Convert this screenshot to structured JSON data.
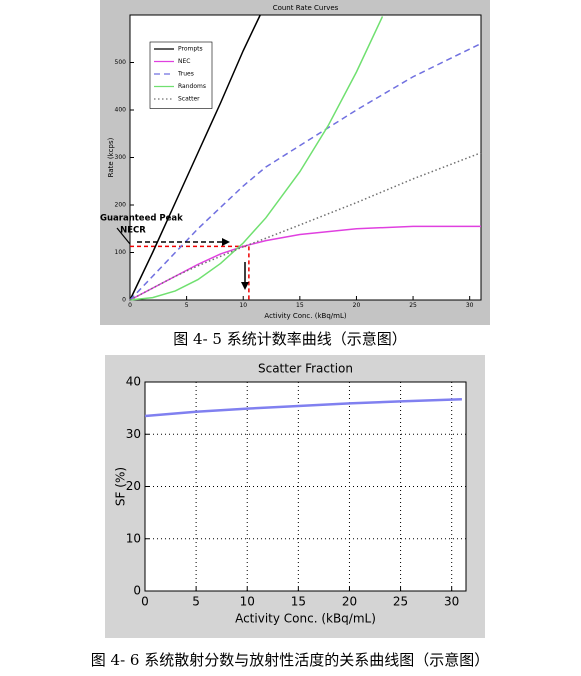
{
  "chart_data": [
    {
      "type": "line",
      "title": "Count Rate Curves",
      "xlabel": "Activity Conc. (kBq/mL)",
      "ylabel": "Rate (kcps)",
      "xlim": [
        0,
        31
      ],
      "ylim": [
        0,
        600
      ],
      "xticks": [
        0,
        5,
        10,
        15,
        20,
        25,
        30
      ],
      "yticks": [
        0,
        100,
        200,
        300,
        400,
        500
      ],
      "grid": false,
      "legend": "upper left",
      "background": "#c4c4c4",
      "series": [
        {
          "name": "Prompts",
          "color": "#000000",
          "style": "solid",
          "x": [
            0,
            2,
            4,
            6,
            8,
            10,
            11.5
          ],
          "values": [
            0,
            100,
            205,
            310,
            415,
            525,
            600
          ]
        },
        {
          "name": "NEC",
          "color": "#e040e0",
          "style": "solid",
          "x": [
            0,
            2,
            4,
            6,
            8,
            10,
            12,
            15,
            20,
            25,
            31
          ],
          "values": [
            0,
            25,
            50,
            75,
            97,
            113,
            125,
            138,
            150,
            155,
            155
          ]
        },
        {
          "name": "Trues",
          "color": "#7070e0",
          "style": "dashed",
          "x": [
            0,
            2,
            4,
            6,
            8,
            10,
            12,
            15,
            20,
            25,
            31
          ],
          "values": [
            0,
            50,
            100,
            150,
            195,
            240,
            280,
            325,
            400,
            470,
            540
          ]
        },
        {
          "name": "Randoms",
          "color": "#70e070",
          "style": "solid",
          "x": [
            0,
            2,
            4,
            6,
            8,
            10,
            12,
            15,
            17.5,
            20,
            22.3
          ],
          "values": [
            0,
            5,
            19,
            43,
            77,
            120,
            173,
            270,
            367,
            480,
            597
          ]
        },
        {
          "name": "Scatter",
          "color": "#707070",
          "style": "dotted",
          "x": [
            0,
            2,
            4,
            6,
            8,
            10,
            12,
            15,
            20,
            25,
            31
          ],
          "values": [
            0,
            25,
            50,
            72,
            92,
            112,
            130,
            158,
            205,
            255,
            310
          ]
        }
      ],
      "annotation": [
        "Guaranteed Peak",
        "NECR"
      ],
      "peak": {
        "x": 10.5,
        "y": 113
      },
      "caption": "图 4- 5 系统计数率曲线（示意图）"
    },
    {
      "type": "line",
      "title": "Scatter Fraction",
      "xlabel": "Activity Conc. (kBq/mL)",
      "ylabel": "SF (%)",
      "xlim": [
        0,
        31.4
      ],
      "ylim": [
        0,
        40
      ],
      "xticks": [
        0,
        5,
        10,
        15,
        20,
        25,
        30
      ],
      "yticks": [
        0,
        10,
        20,
        30,
        40
      ],
      "grid": true,
      "background": "#d4d4d4",
      "series": [
        {
          "color": "#8080f0",
          "style": "solid",
          "x": [
            0,
            5,
            10,
            15,
            20,
            25,
            31
          ],
          "values": [
            33.5,
            34.3,
            34.9,
            35.4,
            35.9,
            36.3,
            36.7
          ]
        }
      ],
      "caption": "图 4- 6 系统散射分数与放射性活度的关系曲线图（示意图）"
    }
  ]
}
